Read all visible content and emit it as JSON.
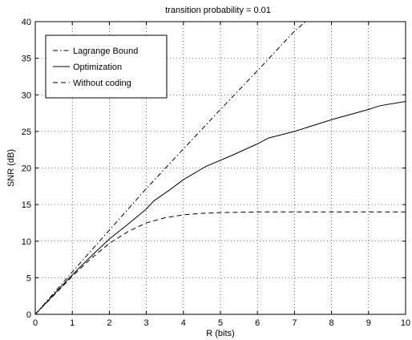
{
  "chart_data": {
    "type": "line",
    "title": "transition probability = 0.01",
    "xlabel": "R (bits)",
    "ylabel": "SNR (dB)",
    "xlim": [
      0,
      10
    ],
    "ylim": [
      0,
      40
    ],
    "xticks": [
      "0",
      "1",
      "2",
      "3",
      "4",
      "5",
      "6",
      "7",
      "8",
      "9",
      "10"
    ],
    "yticks": [
      "0",
      "5",
      "10",
      "15",
      "20",
      "25",
      "30",
      "35",
      "40"
    ],
    "grid": true,
    "legend_placement": "top-left",
    "series": [
      {
        "name": "Lagrange Bound",
        "style": "dashdot",
        "color": "#000000",
        "x": [
          0,
          1,
          2,
          3,
          4,
          5,
          6,
          7,
          7.3
        ],
        "y": [
          0,
          5.8,
          11.5,
          17.2,
          22.6,
          28.0,
          33.3,
          38.7,
          40
        ]
      },
      {
        "name": "Optimization",
        "style": "solid",
        "color": "#000000",
        "x": [
          0,
          0.5,
          1,
          1.5,
          2,
          2.5,
          3,
          3.2,
          3.6,
          4,
          4.6,
          5.3,
          6,
          6.3,
          7,
          8,
          9,
          9.3,
          10
        ],
        "y": [
          0,
          2.7,
          5.4,
          7.9,
          10.3,
          12.3,
          14.4,
          15.5,
          16.9,
          18.4,
          20.2,
          21.7,
          23.3,
          24.1,
          25.0,
          26.6,
          28.0,
          28.5,
          29.1
        ]
      },
      {
        "name": "Without coding",
        "style": "dashed",
        "color": "#000000",
        "x": [
          0,
          0.5,
          1,
          1.5,
          2,
          2.5,
          3,
          3.5,
          4,
          4.5,
          5,
          6,
          7,
          8,
          9,
          10
        ],
        "y": [
          0,
          2.6,
          5.2,
          7.6,
          9.7,
          11.3,
          12.5,
          13.2,
          13.6,
          13.8,
          13.9,
          14.0,
          14.0,
          14.0,
          14.0,
          14.0
        ]
      }
    ]
  }
}
